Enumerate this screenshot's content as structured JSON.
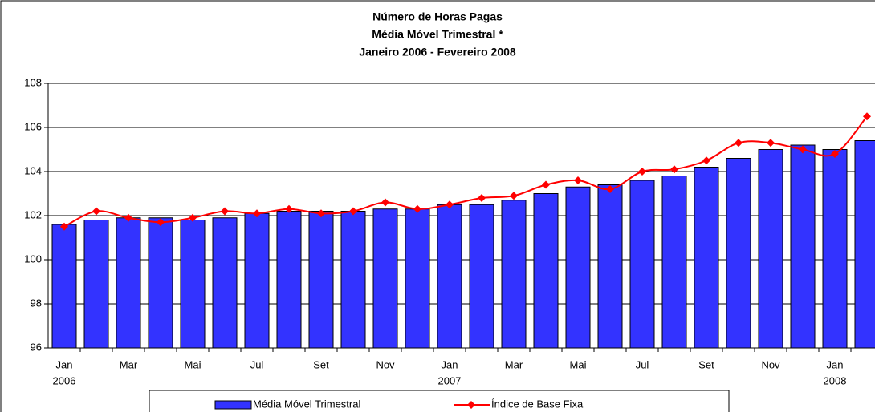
{
  "chart_data": {
    "type": "bar-line",
    "title_lines": [
      "Número de Horas Pagas",
      "Média Móvel Trimestral *",
      "Janeiro 2006 - Fevereiro 2008"
    ],
    "categories": [
      "Jan",
      null,
      "Mar",
      null,
      "Mai",
      null,
      "Jul",
      null,
      "Set",
      null,
      "Nov",
      null,
      "Jan",
      null,
      "Mar",
      null,
      "Mai",
      null,
      "Jul",
      null,
      "Set",
      null,
      "Nov",
      null,
      "Jan",
      null
    ],
    "category_years": [
      "2006",
      null,
      null,
      null,
      null,
      null,
      null,
      null,
      null,
      null,
      null,
      null,
      "2007",
      null,
      null,
      null,
      null,
      null,
      null,
      null,
      null,
      null,
      null,
      null,
      "2008",
      null
    ],
    "series": [
      {
        "name": "Média Móvel Trimestral",
        "type": "bar",
        "color": "#3333ff",
        "values": [
          101.6,
          101.8,
          101.9,
          101.9,
          101.8,
          101.9,
          102.1,
          102.2,
          102.2,
          102.2,
          102.3,
          102.3,
          102.5,
          102.5,
          102.7,
          103.0,
          103.3,
          103.4,
          103.6,
          103.8,
          104.2,
          104.6,
          105.0,
          105.2,
          105.0,
          105.4
        ]
      },
      {
        "name": "Índice de Base Fixa",
        "type": "line",
        "color": "#ff0000",
        "values": [
          101.5,
          102.2,
          101.9,
          101.7,
          101.9,
          102.2,
          102.1,
          102.3,
          102.1,
          102.2,
          102.6,
          102.3,
          102.5,
          102.8,
          102.9,
          103.4,
          103.6,
          103.2,
          104.0,
          104.1,
          104.5,
          105.3,
          105.3,
          105.0,
          104.8,
          106.5
        ]
      }
    ],
    "ylim": [
      96,
      108
    ],
    "yticks": [
      96,
      98,
      100,
      102,
      104,
      106,
      108
    ],
    "grid": true
  }
}
